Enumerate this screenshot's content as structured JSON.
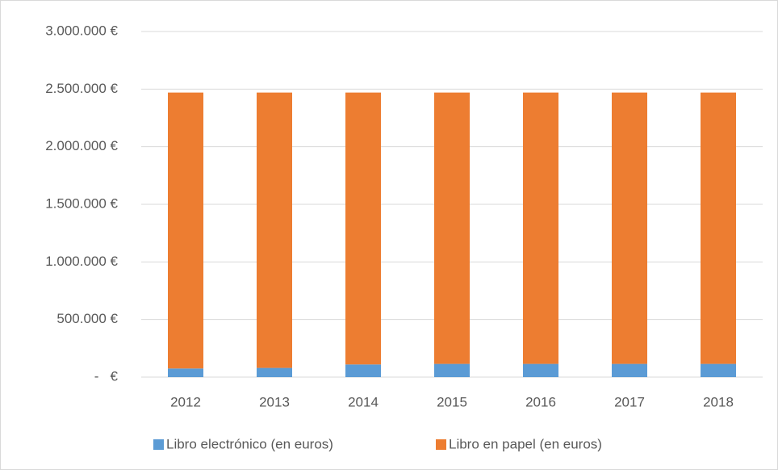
{
  "chart_data": {
    "type": "stacked_bar",
    "categories": [
      "2012",
      "2013",
      "2014",
      "2015",
      "2016",
      "2017",
      "2018"
    ],
    "series": [
      {
        "name": "Libro electrónico (en euros)",
        "color": "#5b9bd5",
        "values": [
          75000,
          80000,
          110000,
          115000,
          115000,
          115000,
          115000
        ]
      },
      {
        "name": "Libro en papel (en euros)",
        "color": "#ed7d31",
        "values": [
          2395000,
          2390000,
          2360000,
          2355000,
          2355000,
          2355000,
          2355000
        ]
      }
    ],
    "ylim": [
      0,
      3000000
    ],
    "yticks": [
      {
        "value": 0,
        "label": "-   €"
      },
      {
        "value": 500000,
        "label": "500.000 €"
      },
      {
        "value": 1000000,
        "label": "1.000.000 €"
      },
      {
        "value": 1500000,
        "label": "1.500.000 €"
      },
      {
        "value": 2000000,
        "label": "2.000.000 €"
      },
      {
        "value": 2500000,
        "label": "2.500.000 €"
      },
      {
        "value": 3000000,
        "label": "3.000.000 €"
      }
    ],
    "grid": true,
    "legend": "bottom"
  }
}
